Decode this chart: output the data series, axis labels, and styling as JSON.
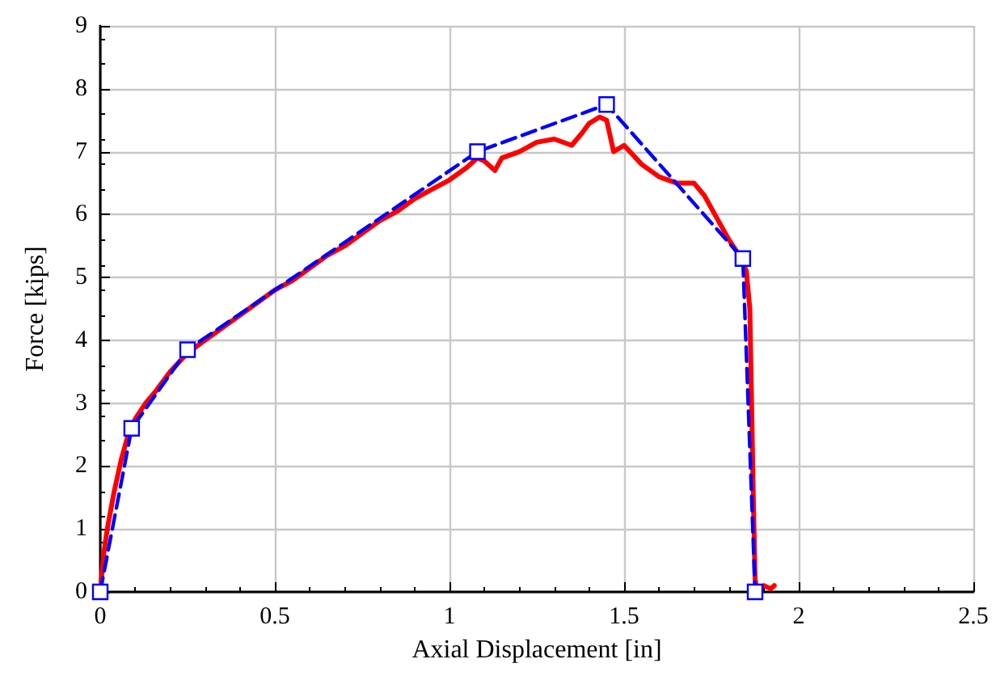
{
  "chart_data": {
    "type": "line",
    "xlabel": "Axial Displacement [in]",
    "ylabel": "Force [kips]",
    "xlim": [
      0,
      2.5
    ],
    "xticks": [
      0,
      0.5,
      1,
      1.5,
      2,
      2.5
    ],
    "ylim": [
      0,
      9
    ],
    "yticks": [
      0,
      1,
      2,
      3,
      4,
      5,
      6,
      7,
      8,
      9
    ],
    "grid": true,
    "series": [
      {
        "color": "#ff0000",
        "marker": "none",
        "line_style": "solid",
        "x": [
          0,
          0.01,
          0.02,
          0.04,
          0.06,
          0.08,
          0.1,
          0.13,
          0.16,
          0.2,
          0.25,
          0.3,
          0.35,
          0.4,
          0.45,
          0.5,
          0.55,
          0.6,
          0.65,
          0.7,
          0.75,
          0.8,
          0.85,
          0.9,
          0.95,
          1.0,
          1.05,
          1.08,
          1.1,
          1.13,
          1.15,
          1.2,
          1.25,
          1.3,
          1.35,
          1.38,
          1.4,
          1.43,
          1.45,
          1.47,
          1.5,
          1.55,
          1.6,
          1.65,
          1.7,
          1.73,
          1.76,
          1.8,
          1.83,
          1.85,
          1.86,
          1.865,
          1.87,
          1.875,
          1.88,
          1.9,
          1.92,
          1.93
        ],
        "values": [
          0,
          0.6,
          1.0,
          1.6,
          2.1,
          2.5,
          2.75,
          3.0,
          3.2,
          3.5,
          3.8,
          4.0,
          4.2,
          4.4,
          4.6,
          4.8,
          4.95,
          5.15,
          5.35,
          5.5,
          5.7,
          5.9,
          6.05,
          6.25,
          6.4,
          6.55,
          6.75,
          6.9,
          6.85,
          6.7,
          6.9,
          7.0,
          7.15,
          7.2,
          7.1,
          7.3,
          7.45,
          7.55,
          7.5,
          7.0,
          7.1,
          6.8,
          6.6,
          6.5,
          6.5,
          6.3,
          6.0,
          5.6,
          5.35,
          5.1,
          4.5,
          3,
          1.5,
          0.2,
          0.05,
          0.1,
          0.05,
          0.1
        ]
      },
      {
        "color": "#0000ff",
        "marker": "square",
        "line_style": "dashed",
        "x": [
          0,
          0.09,
          0.25,
          1.08,
          1.45,
          1.84,
          1.875
        ],
        "values": [
          0,
          2.6,
          3.85,
          7.0,
          7.75,
          5.3,
          0
        ]
      }
    ]
  }
}
